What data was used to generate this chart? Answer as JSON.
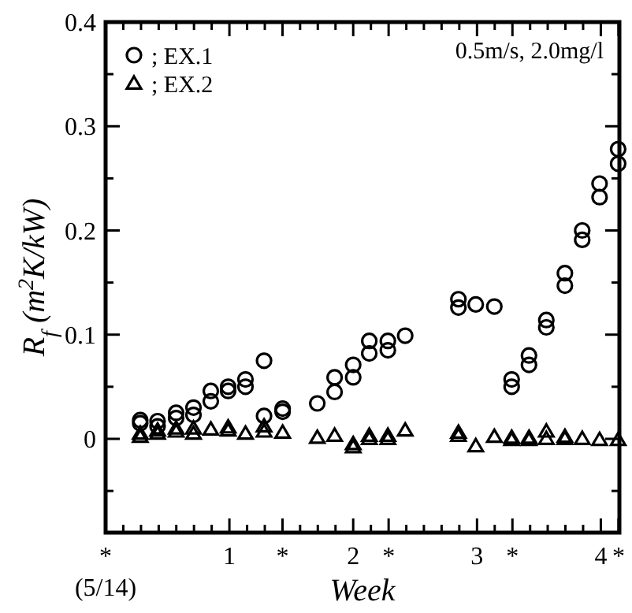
{
  "chart_data": {
    "type": "scatter",
    "xlabel": "Week",
    "ylabel": "R$_{f}$ (m$^{2}$K/kW)",
    "annotations": [
      "0.5m/s, 2.0mg/l"
    ],
    "xlim": [
      0,
      4.15
    ],
    "ylim": [
      -0.09,
      0.4
    ],
    "xticks": [
      {
        "value": 0,
        "label": "*\n(5/14)"
      },
      {
        "value": 0.143,
        "label": null
      },
      {
        "value": 0.286,
        "label": null
      },
      {
        "value": 0.429,
        "label": null
      },
      {
        "value": 0.571,
        "label": null
      },
      {
        "value": 0.714,
        "label": null
      },
      {
        "value": 0.857,
        "label": null
      },
      1,
      {
        "value": 1.143,
        "label": null
      },
      {
        "value": 1.286,
        "label": null
      },
      {
        "value": 1.429,
        "label": "*"
      },
      {
        "value": 1.571,
        "label": null
      },
      {
        "value": 1.714,
        "label": null
      },
      {
        "value": 1.857,
        "label": null
      },
      2,
      {
        "value": 2.143,
        "label": null
      },
      {
        "value": 2.286,
        "label": "*"
      },
      {
        "value": 2.429,
        "label": null
      },
      {
        "value": 2.571,
        "label": null
      },
      {
        "value": 2.714,
        "label": null
      },
      {
        "value": 2.857,
        "label": null
      },
      3,
      {
        "value": 3.143,
        "label": null
      },
      {
        "value": 3.286,
        "label": "*"
      },
      {
        "value": 3.429,
        "label": null
      },
      {
        "value": 3.571,
        "label": null
      },
      {
        "value": 3.714,
        "label": null
      },
      {
        "value": 3.857,
        "label": null
      },
      4,
      {
        "value": 4.143,
        "label": "*"
      }
    ],
    "yticks": [
      {
        "value": -0.05,
        "label": null
      },
      0,
      {
        "value": 0.05,
        "label": null
      },
      0.1,
      {
        "value": 0.15,
        "label": null
      },
      0.2,
      {
        "value": 0.25,
        "label": null
      },
      0.3,
      {
        "value": 0.35,
        "label": null
      },
      0.4
    ],
    "grid": false,
    "legend": "top left",
    "series": [
      {
        "name": "; EX.1",
        "color": "#000000",
        "marker": "circle",
        "x": [
          0.28,
          0.28,
          0.42,
          0.42,
          0.57,
          0.57,
          0.71,
          0.71,
          0.85,
          0.85,
          0.99,
          0.99,
          1.13,
          1.13,
          1.28,
          1.28,
          1.43,
          1.43,
          1.71,
          1.85,
          1.85,
          2.0,
          2.0,
          2.13,
          2.13,
          2.28,
          2.28,
          2.42,
          2.85,
          2.85,
          2.99,
          3.14,
          3.28,
          3.28,
          3.42,
          3.42,
          3.56,
          3.56,
          3.71,
          3.71,
          3.85,
          3.85,
          3.99,
          3.99,
          4.14,
          4.14
        ],
        "values": [
          0.018,
          0.015,
          0.017,
          0.012,
          0.025,
          0.02,
          0.03,
          0.023,
          0.046,
          0.036,
          0.05,
          0.046,
          0.057,
          0.05,
          0.075,
          0.022,
          0.029,
          0.026,
          0.034,
          0.045,
          0.059,
          0.059,
          0.071,
          0.082,
          0.094,
          0.085,
          0.094,
          0.099,
          0.134,
          0.126,
          0.129,
          0.127,
          0.057,
          0.05,
          0.08,
          0.071,
          0.114,
          0.107,
          0.159,
          0.147,
          0.2,
          0.191,
          0.245,
          0.232,
          0.278,
          0.264
        ]
      },
      {
        "name": "; EX.2",
        "color": "#000000",
        "marker": "triangle",
        "x": [
          0.28,
          0.28,
          0.42,
          0.42,
          0.57,
          0.57,
          0.71,
          0.71,
          0.85,
          0.99,
          0.99,
          1.13,
          1.28,
          1.28,
          1.43,
          1.71,
          1.85,
          2.0,
          2.0,
          2.13,
          2.13,
          2.28,
          2.28,
          2.42,
          2.85,
          2.85,
          2.99,
          3.14,
          3.28,
          3.28,
          3.42,
          3.42,
          3.56,
          3.56,
          3.71,
          3.71,
          3.85,
          3.99,
          4.14
        ],
        "values": [
          0.002,
          0.005,
          0.005,
          0.008,
          0.007,
          0.01,
          0.005,
          0.01,
          0.009,
          0.011,
          0.008,
          0.005,
          0.007,
          0.012,
          0.006,
          0.001,
          0.003,
          -0.008,
          -0.005,
          0.0,
          0.003,
          0.0,
          0.003,
          0.008,
          0.003,
          0.006,
          -0.007,
          0.002,
          -0.001,
          0.001,
          -0.001,
          0.001,
          0.007,
          0.0,
          0.002,
          0.0,
          0.0,
          -0.001,
          -0.001
        ]
      }
    ]
  }
}
